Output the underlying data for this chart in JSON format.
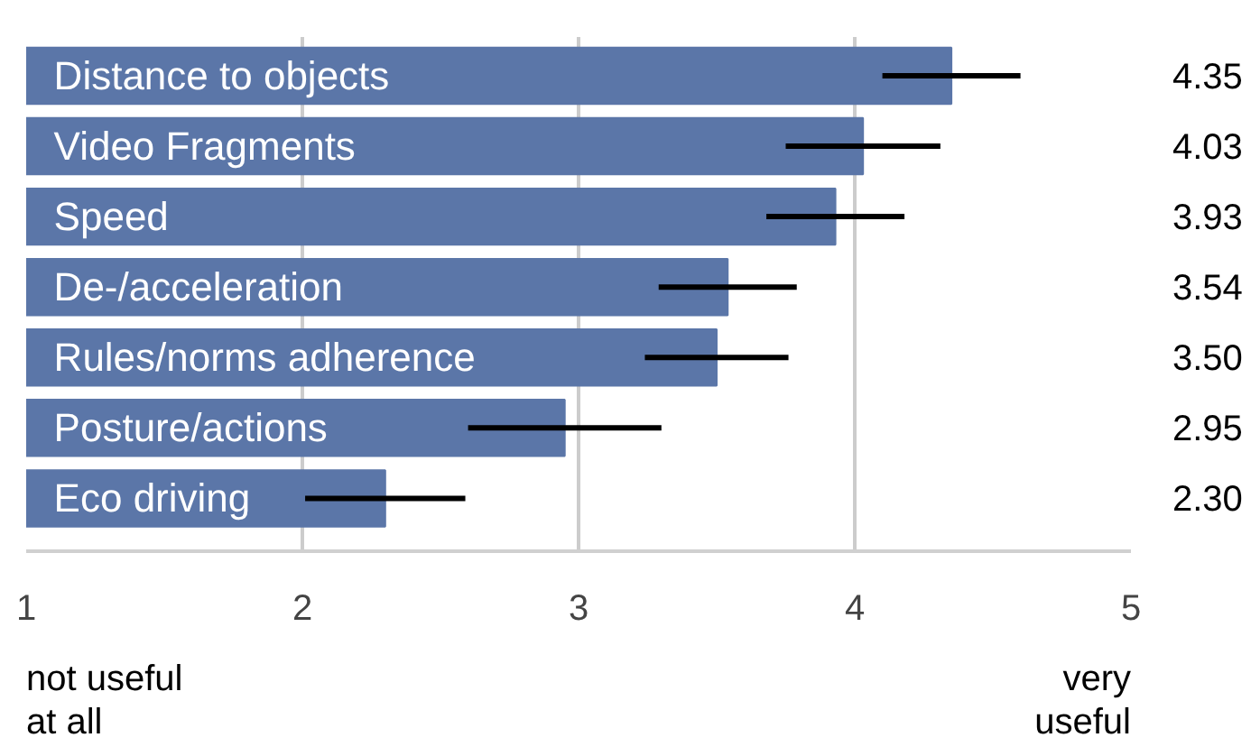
{
  "chart_data": {
    "type": "bar",
    "orientation": "horizontal",
    "categories": [
      "Distance to objects",
      "Video Fragments",
      "Speed",
      "De-/acceleration",
      "Rules/norms adherence",
      "Posture/actions",
      "Eco driving"
    ],
    "values": [
      4.35,
      4.03,
      3.93,
      3.54,
      3.5,
      2.95,
      2.3
    ],
    "value_labels": [
      "4.35",
      "4.03",
      "3.93",
      "3.54",
      "3.50",
      "2.95",
      "2.30"
    ],
    "errors": [
      0.25,
      0.28,
      0.25,
      0.25,
      0.26,
      0.35,
      0.29
    ],
    "color": "#5b76a8",
    "xlim": [
      1,
      5
    ],
    "xticks": [
      1,
      2,
      3,
      4,
      5
    ],
    "grid": "x",
    "annotations": [
      "not useful\nat all",
      "very\nuseful"
    ]
  }
}
